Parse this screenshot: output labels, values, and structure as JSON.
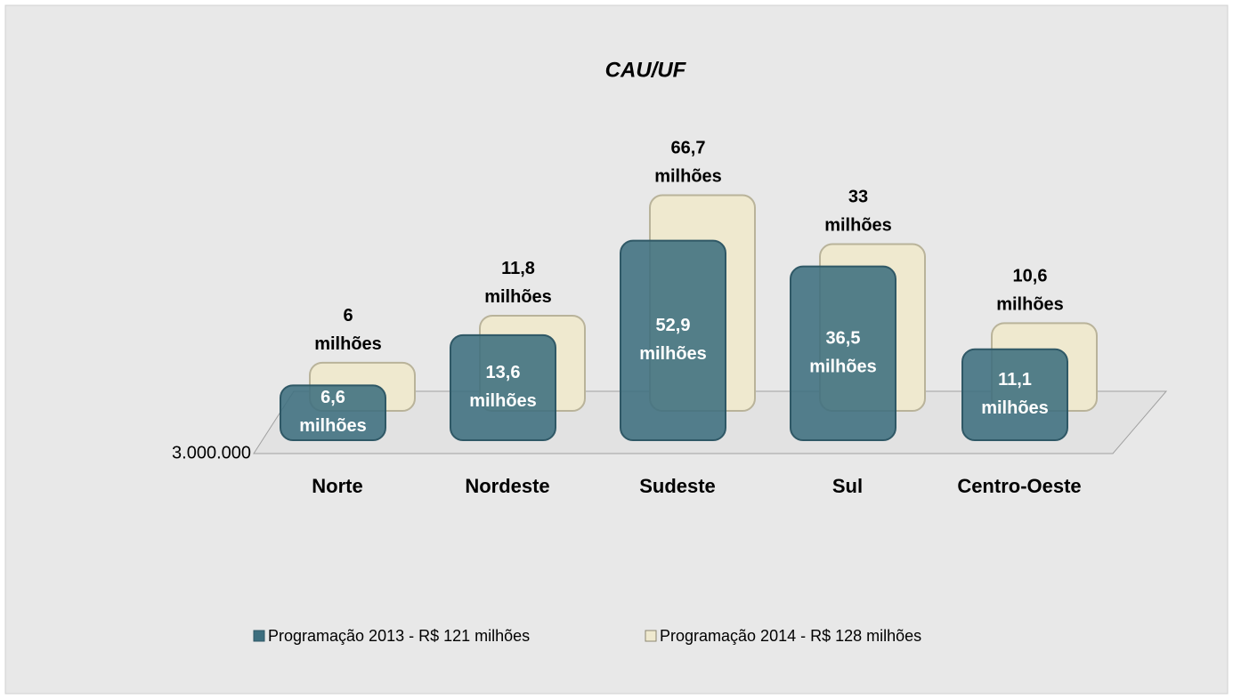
{
  "chart_data": {
    "type": "bar3d",
    "title": "CAU/UF",
    "categories": [
      "Norte",
      "Nordeste",
      "Sudeste",
      "Sul",
      "Centro-Oeste"
    ],
    "series": [
      {
        "name": "Programação 2013 - R$ 121 milhões",
        "color": "#3d6e7e",
        "values": [
          6600000,
          13600000,
          52900000,
          36500000,
          11100000
        ],
        "value_labels": [
          "6,6 milhões",
          "13,6 milhões",
          "52,9 milhões",
          "36,5 milhões",
          "11,1 milhões"
        ]
      },
      {
        "name": "Programação 2014 - R$ 128 milhões",
        "color": "#efe9cf",
        "values": [
          6000000,
          11800000,
          66700000,
          33000000,
          10600000
        ],
        "value_labels": [
          "6 milhões",
          "11,8 milhões",
          "66,7 milhões",
          "33 milhões",
          "10,6 milhões"
        ]
      }
    ],
    "ylim": [
      3000000,
      100000000
    ],
    "log_scale": true,
    "yticks": [
      {
        "value": 3000000,
        "label": "3.000.000"
      }
    ],
    "legend": "bottom"
  }
}
